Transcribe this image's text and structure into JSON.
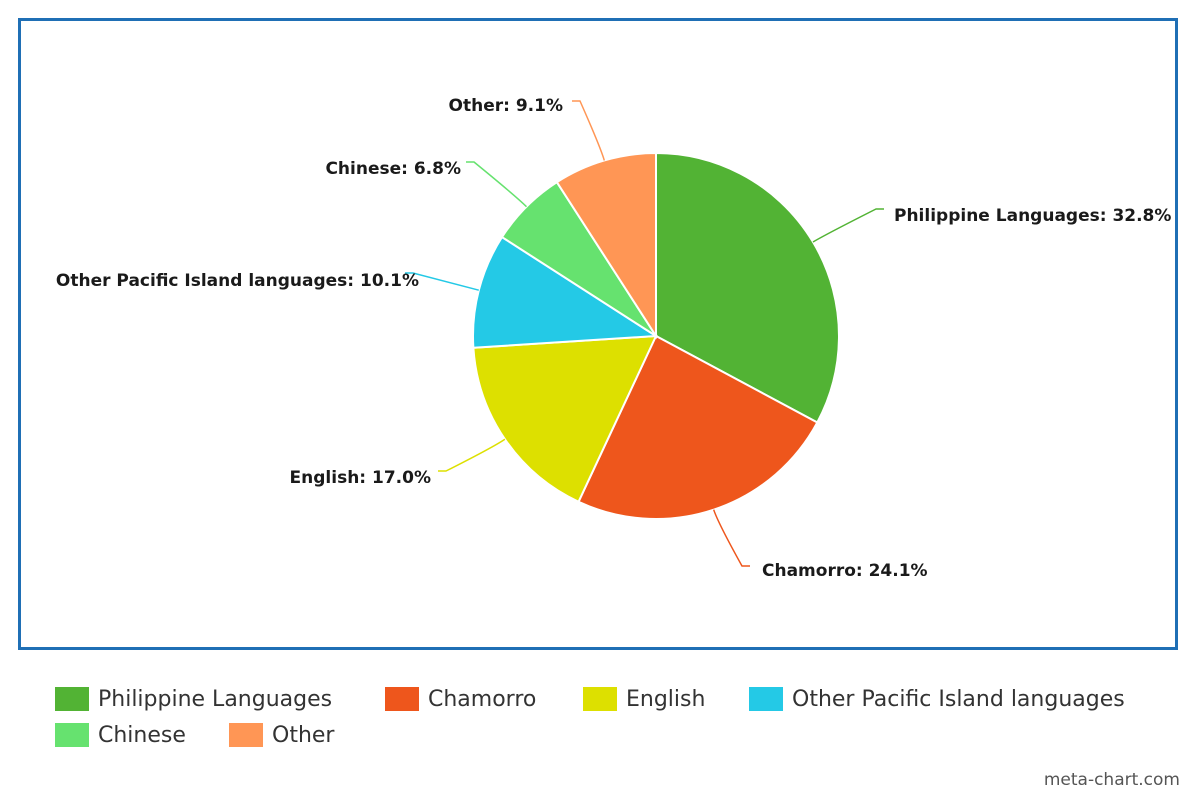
{
  "chart_data": {
    "type": "pie",
    "categories": [
      "Philippine Languages",
      "Chamorro",
      "English",
      "Other Pacific Island languages",
      "Chinese",
      "Other"
    ],
    "values": [
      32.8,
      24.1,
      17.0,
      10.1,
      6.8,
      9.1
    ],
    "labels": [
      "Philippine Languages: 32.8%",
      "Chamorro: 24.1%",
      "English: 17.0%",
      "Other Pacific Island languages: 10.1%",
      "Chinese: 6.8%",
      "Other: 9.1%"
    ],
    "colors": [
      "#52b334",
      "#ee561c",
      "#dde000",
      "#24c9e6",
      "#66e26f",
      "#ff9655"
    ],
    "legend_position": "bottom",
    "frame_color": "#1f6fb5"
  },
  "legend": {
    "items": [
      {
        "label": "Philippine Languages",
        "color": "#52b334"
      },
      {
        "label": "Chamorro",
        "color": "#ee561c"
      },
      {
        "label": "English",
        "color": "#dde000"
      },
      {
        "label": "Other Pacific Island languages",
        "color": "#24c9e6"
      },
      {
        "label": "Chinese",
        "color": "#66e26f"
      },
      {
        "label": "Other",
        "color": "#ff9655"
      }
    ]
  },
  "credit": "meta-chart.com"
}
